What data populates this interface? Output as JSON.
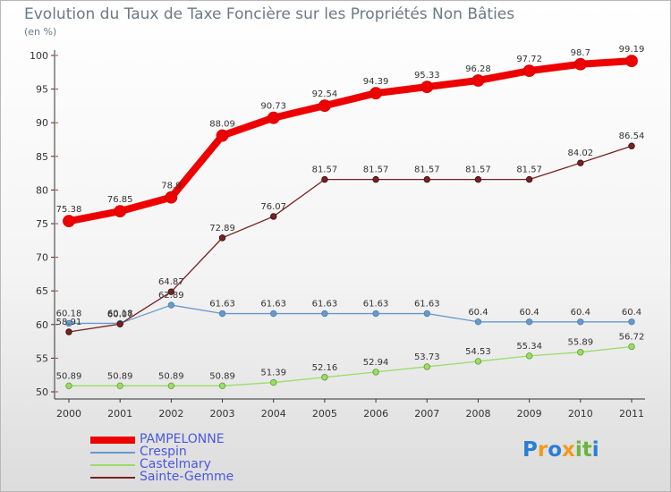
{
  "chart_data": {
    "type": "line",
    "title": "Evolution du Taux de Taxe Foncière sur les Propriétés Non Bâties",
    "ylabel": "(en %)",
    "xlabel": "",
    "ylim": [
      50,
      100
    ],
    "yticks": [
      "50",
      "55",
      "60",
      "65",
      "70",
      "75",
      "80",
      "85",
      "90",
      "95",
      "100"
    ],
    "categories": [
      "2000",
      "2001",
      "2002",
      "2003",
      "2004",
      "2005",
      "2006",
      "2007",
      "2008",
      "2009",
      "2010",
      "2011"
    ],
    "grid": false,
    "legend_position": "bottom-left",
    "series": [
      {
        "name": "PAMPELONNE",
        "color": "#ee0000",
        "values": [
          75.38,
          76.85,
          78.9,
          88.09,
          90.73,
          92.54,
          94.39,
          95.33,
          96.28,
          97.72,
          98.7,
          99.19
        ],
        "labels": [
          "75.38",
          "76.85",
          "78.9",
          "88.09",
          "90.73",
          "92.54",
          "94.39",
          "95.33",
          "96.28",
          "97.72",
          "98.7",
          "99.19"
        ]
      },
      {
        "name": "Crespin",
        "color": "#6699cc",
        "values": [
          60.18,
          60.18,
          62.89,
          61.63,
          61.63,
          61.63,
          61.63,
          61.63,
          60.4,
          60.4,
          60.4,
          60.4
        ],
        "labels": [
          "60.18",
          "60.18",
          "62.89",
          "61.63",
          "61.63",
          "61.63",
          "61.63",
          "61.63",
          "60.4",
          "60.4",
          "60.4",
          "60.4"
        ]
      },
      {
        "name": "Castelmary",
        "color": "#99dd66",
        "values": [
          50.89,
          50.89,
          50.89,
          50.89,
          51.39,
          52.16,
          52.94,
          53.73,
          54.53,
          55.34,
          55.89,
          56.72
        ],
        "labels": [
          "50.89",
          "50.89",
          "50.89",
          "50.89",
          "51.39",
          "52.16",
          "52.94",
          "53.73",
          "54.53",
          "55.34",
          "55.89",
          "56.72"
        ]
      },
      {
        "name": "Sainte-Gemme",
        "color": "#772222",
        "values": [
          58.91,
          60.07,
          64.87,
          72.89,
          76.07,
          81.57,
          81.57,
          81.57,
          81.57,
          81.57,
          84.02,
          86.54
        ],
        "labels": [
          "58.91",
          "60.07",
          "64.87",
          "72.89",
          "76.07",
          "81.57",
          "81.57",
          "81.57",
          "81.57",
          "81.57",
          "84.02",
          "86.54"
        ]
      }
    ]
  },
  "logo": {
    "text": "Proxiti",
    "letters": [
      "P",
      "r",
      "o",
      "x",
      "i",
      "t",
      "i"
    ],
    "colors": [
      "#2a7fd4",
      "#f29a1a",
      "#2a7fd4",
      "#f29a1a",
      "#6ab43e",
      "#6ab43e",
      "#2a7fd4"
    ]
  }
}
